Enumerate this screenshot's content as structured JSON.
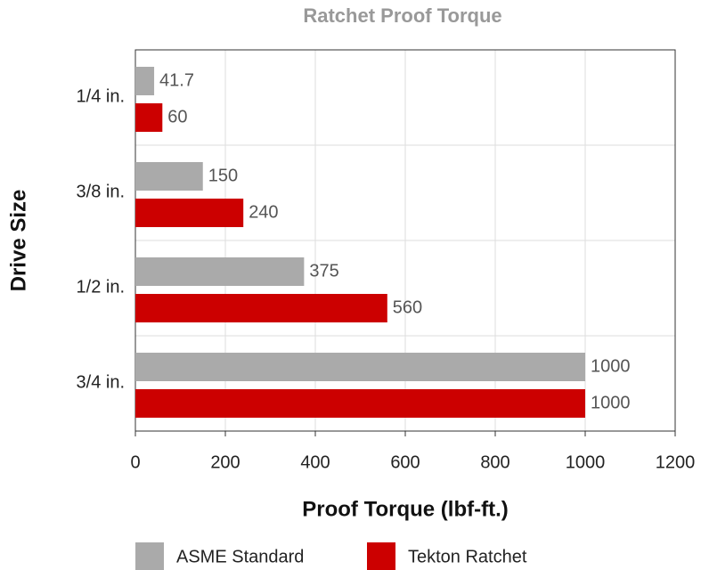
{
  "chart_data": {
    "type": "barh",
    "title": "Ratchet Proof Torque",
    "xlabel": "Proof Torque (lbf-ft.)",
    "ylabel": "Drive Size",
    "categories": [
      "1/4 in.",
      "3/8 in.",
      "1/2 in.",
      "3/4 in."
    ],
    "series": [
      {
        "name": "ASME Standard",
        "color": "#aaaaaa",
        "values": [
          41.7,
          150,
          375,
          1000
        ]
      },
      {
        "name": "Tekton Ratchet",
        "color": "#cc0000",
        "values": [
          60,
          240,
          560,
          1000
        ]
      }
    ],
    "xlim": [
      0,
      1200
    ],
    "xticks": [
      0,
      200,
      400,
      600,
      800,
      1000,
      1200
    ],
    "grid": true,
    "legend": "bottom"
  }
}
